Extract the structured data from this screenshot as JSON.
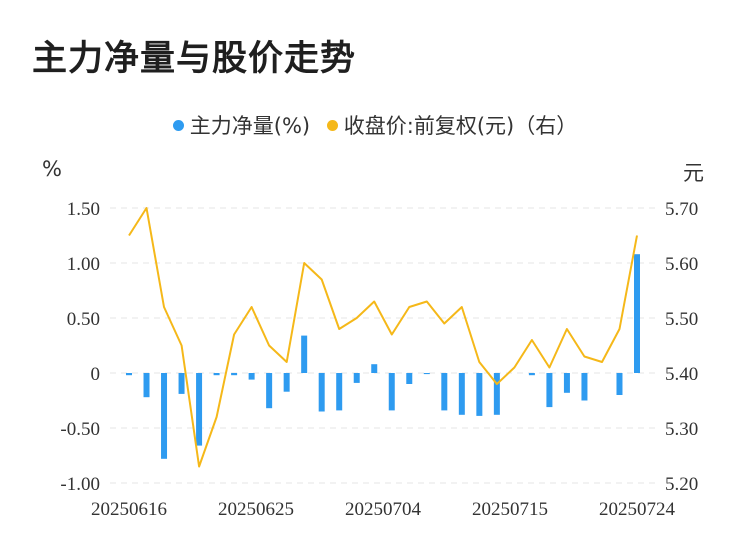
{
  "title": "主力净量与股价走势",
  "legend": {
    "net_label": "主力净量(%)",
    "price_label": "收盘价:前复权(元)（右）"
  },
  "units": {
    "left": "%",
    "right": "元"
  },
  "colors": {
    "bar": "#2e9bf0",
    "line": "#f5b819",
    "grid": "#e6e6e6",
    "text": "#333333"
  },
  "chart_data": {
    "type": "bar+line",
    "title": "主力净量与股价走势",
    "x_labels_shown": [
      "20250616",
      "20250625",
      "20250704",
      "20250715",
      "20250724"
    ],
    "left_axis": {
      "unit": "%",
      "ylim": [
        -1.0,
        1.5
      ],
      "ticks": [
        "1.50",
        "1.00",
        "0.50",
        "0",
        "-0.50",
        "-1.00"
      ],
      "tick_values": [
        1.5,
        1.0,
        0.5,
        0,
        -0.5,
        -1.0
      ]
    },
    "right_axis": {
      "unit": "元",
      "ylim": [
        5.2,
        5.7
      ],
      "ticks": [
        "5.70",
        "5.60",
        "5.50",
        "5.40",
        "5.30",
        "5.20"
      ],
      "tick_values": [
        5.7,
        5.6,
        5.5,
        5.4,
        5.3,
        5.2
      ]
    },
    "grid": true,
    "legend_position": "top-center",
    "series": [
      {
        "name": "主力净量(%)",
        "type": "bar",
        "axis": "left",
        "values": [
          -0.02,
          -0.22,
          -0.78,
          -0.19,
          -0.66,
          -0.02,
          -0.02,
          -0.06,
          -0.32,
          -0.17,
          0.34,
          -0.35,
          -0.34,
          -0.09,
          0.08,
          -0.34,
          -0.1,
          -0.01,
          -0.34,
          -0.38,
          -0.39,
          -0.38,
          0.0,
          -0.02,
          -0.31,
          -0.18,
          -0.25,
          0.0,
          -0.2,
          1.08
        ]
      },
      {
        "name": "收盘价:前复权(元)（右）",
        "type": "line",
        "axis": "right",
        "values": [
          5.65,
          5.7,
          5.52,
          5.45,
          5.23,
          5.32,
          5.47,
          5.52,
          5.45,
          5.42,
          5.6,
          5.57,
          5.48,
          5.5,
          5.53,
          5.47,
          5.52,
          5.53,
          5.49,
          5.52,
          5.42,
          5.38,
          5.41,
          5.46,
          5.41,
          5.48,
          5.43,
          5.42,
          5.48,
          5.65
        ]
      }
    ]
  }
}
